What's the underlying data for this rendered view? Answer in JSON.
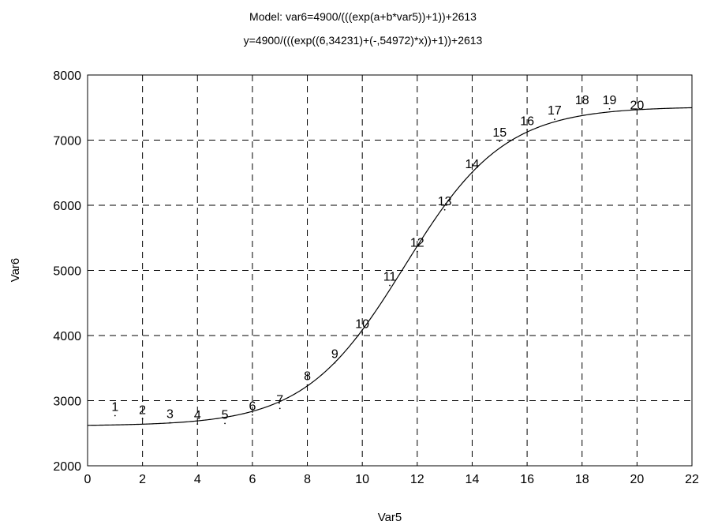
{
  "chart_data": {
    "type": "scatter",
    "title": "Model: var6=4900/(((exp(a+b*var5))+1))+2613",
    "subtitle": "y=4900/(((exp((6,34231)+(-,54972)*x))+1))+2613",
    "xlabel": "Var5",
    "ylabel": "Var6",
    "xlim": [
      0,
      22
    ],
    "ylim": [
      2000,
      8000
    ],
    "xticks": [
      0,
      2,
      4,
      6,
      8,
      10,
      12,
      14,
      16,
      18,
      20,
      22
    ],
    "yticks": [
      2000,
      3000,
      4000,
      5000,
      6000,
      7000,
      8000
    ],
    "grid": true,
    "grid_style": "dashed",
    "points": [
      {
        "x": 1,
        "y": 2770,
        "label": "1"
      },
      {
        "x": 2,
        "y": 2720,
        "label": "2"
      },
      {
        "x": 3,
        "y": 2660,
        "label": "3"
      },
      {
        "x": 4,
        "y": 2640,
        "label": "4"
      },
      {
        "x": 5,
        "y": 2650,
        "label": "5"
      },
      {
        "x": 6,
        "y": 2780,
        "label": "6"
      },
      {
        "x": 7,
        "y": 2880,
        "label": "7"
      },
      {
        "x": 8,
        "y": 3240,
        "label": "8"
      },
      {
        "x": 9,
        "y": 3580,
        "label": "9"
      },
      {
        "x": 10,
        "y": 4040,
        "label": "10"
      },
      {
        "x": 11,
        "y": 4770,
        "label": "11"
      },
      {
        "x": 12,
        "y": 5290,
        "label": "12"
      },
      {
        "x": 13,
        "y": 5930,
        "label": "13"
      },
      {
        "x": 14,
        "y": 6500,
        "label": "14"
      },
      {
        "x": 15,
        "y": 6980,
        "label": "15"
      },
      {
        "x": 16,
        "y": 7160,
        "label": "16"
      },
      {
        "x": 17,
        "y": 7320,
        "label": "17"
      },
      {
        "x": 18,
        "y": 7480,
        "label": "18"
      },
      {
        "x": 19,
        "y": 7480,
        "label": "19"
      },
      {
        "x": 20,
        "y": 7400,
        "label": "20"
      }
    ],
    "fit_curve": {
      "model": "logistic",
      "amplitude": 4900,
      "offset": 2613,
      "a": 6.34231,
      "b": -0.54972
    },
    "colors": {
      "line": "#000000",
      "grid": "#000000",
      "background": "#ffffff"
    }
  }
}
